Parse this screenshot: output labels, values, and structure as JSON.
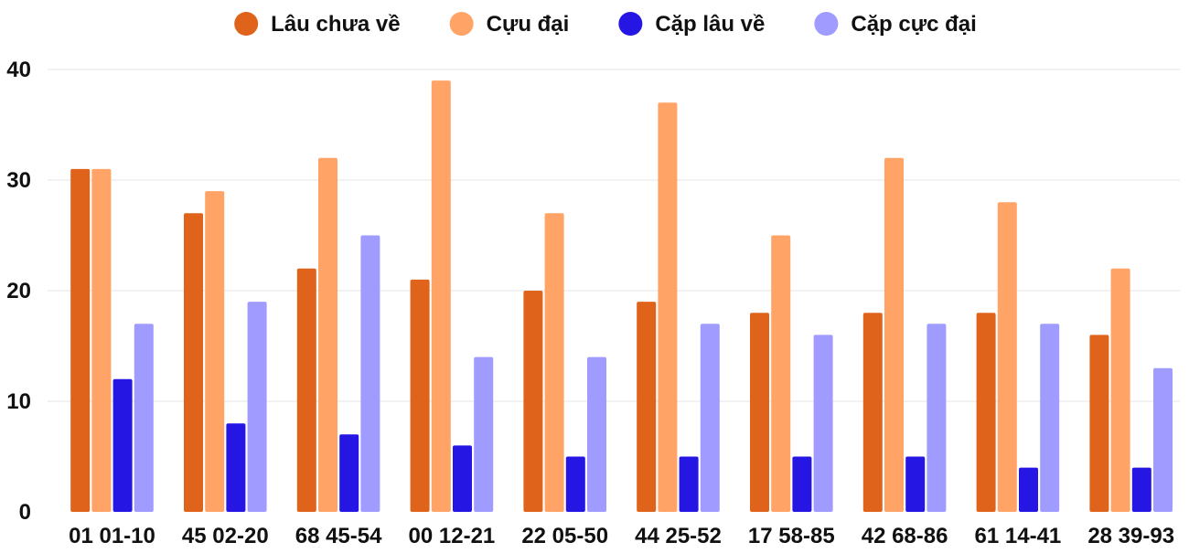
{
  "chart_data": {
    "type": "bar",
    "title": "",
    "xlabel": "",
    "ylabel": "",
    "ylim": [
      0,
      40
    ],
    "yticks": [
      0,
      10,
      20,
      30,
      40
    ],
    "grid": true,
    "legend_position": "top-center",
    "categories": [
      "01 01-10",
      "45 02-20",
      "68 45-54",
      "00 12-21",
      "22 05-50",
      "44 25-52",
      "17 58-85",
      "42 68-86",
      "61 14-41",
      "28 39-93"
    ],
    "series": [
      {
        "name": "Lâu chưa về",
        "color": "#e0631b",
        "values": [
          31,
          27,
          22,
          21,
          20,
          19,
          18,
          18,
          18,
          16
        ]
      },
      {
        "name": "Cựu đại",
        "color": "#ffa466",
        "values": [
          31,
          29,
          32,
          39,
          27,
          37,
          25,
          32,
          28,
          22
        ]
      },
      {
        "name": "Cặp lâu về",
        "color": "#2616e3",
        "values": [
          12,
          8,
          7,
          6,
          5,
          5,
          5,
          5,
          4,
          4
        ]
      },
      {
        "name": "Cặp cực đại",
        "color": "#a09bff",
        "values": [
          17,
          19,
          25,
          14,
          14,
          17,
          16,
          17,
          17,
          13
        ]
      }
    ]
  }
}
